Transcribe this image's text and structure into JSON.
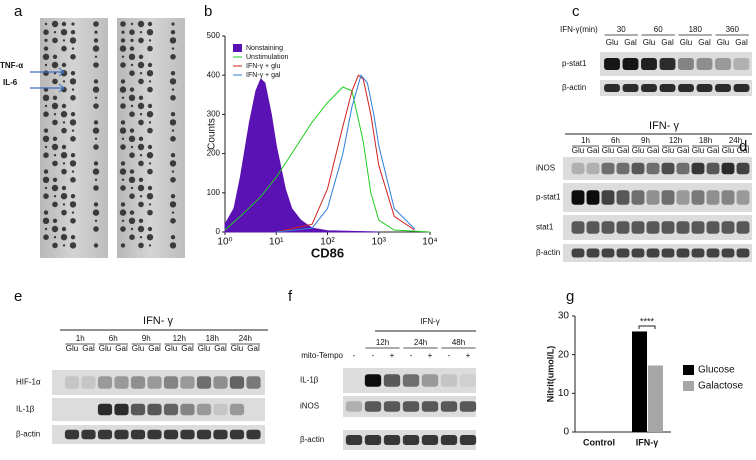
{
  "panel_labels": [
    "a",
    "b",
    "c",
    "d",
    "e",
    "f",
    "g"
  ],
  "array": {
    "markers": [
      "TNF-α",
      "IL-6"
    ]
  },
  "blot_c": {
    "header": "IFN-γ(min)",
    "groups": [
      "30",
      "60",
      "180",
      "360"
    ],
    "lanes": [
      "Glu",
      "Gal",
      "Glu",
      "Gal",
      "Glu",
      "Gal",
      "Glu",
      "Gal"
    ],
    "rows": [
      "p-stat1",
      "β-actin"
    ]
  },
  "blot_d": {
    "treatment": "IFN- γ",
    "groups": [
      "1h",
      "6h",
      "9h",
      "12h",
      "18h",
      "24h"
    ],
    "lanes": [
      "Glu",
      "Gal",
      "Glu",
      "Gal",
      "Glu",
      "Gal",
      "Glu",
      "Gal",
      "Glu",
      "Gal",
      "Glu",
      "Gal"
    ],
    "rows": [
      "iNOS",
      "p-stat1",
      "stat1",
      "β-actin"
    ]
  },
  "blot_e": {
    "treatment": "IFN- γ",
    "groups": [
      "1h",
      "6h",
      "9h",
      "12h",
      "18h",
      "24h"
    ],
    "lanes": [
      "Glu",
      "Gal",
      "Glu",
      "Gal",
      "Glu",
      "Gal",
      "Glu",
      "Gal",
      "Glu",
      "Gal",
      "Glu",
      "Gal"
    ],
    "rows": [
      "HIF-1α",
      "IL-1β",
      "β-actin"
    ]
  },
  "blot_f": {
    "treatment": "IFN-γ",
    "groups": [
      "12h",
      "24h",
      "48h"
    ],
    "condition": "mito-Tempo",
    "signs": [
      "-",
      "-",
      "+",
      "-",
      "+",
      "-",
      "+"
    ],
    "rows": [
      "IL-1β",
      "iNOS",
      "β-actin"
    ]
  },
  "chart_data": [
    {
      "type": "line",
      "xlabel": "CD86",
      "ylabel": "Counts",
      "xlog": true,
      "xlim": [
        1,
        10000
      ],
      "ylim": [
        0,
        500
      ],
      "xticks": [
        {
          "value": 1,
          "label": "10⁰"
        },
        {
          "value": 10,
          "label": "10¹"
        },
        {
          "value": 100,
          "label": "10²"
        },
        {
          "value": 1000,
          "label": "10³"
        },
        {
          "value": 10000,
          "label": "10⁴"
        }
      ],
      "yticks": [
        0,
        100,
        200,
        300,
        400,
        500
      ],
      "legend": "upper left",
      "series": [
        {
          "name": "Nonstaining",
          "color": "#5a12b4",
          "fill": true,
          "x": [
            1,
            1.5,
            2,
            3,
            4,
            5,
            6,
            8,
            10,
            15,
            20,
            30,
            50,
            100,
            1000
          ],
          "values": [
            20,
            60,
            140,
            280,
            360,
            390,
            380,
            300,
            220,
            110,
            60,
            30,
            10,
            3,
            0
          ]
        },
        {
          "name": "Unstimulation",
          "color": "#22cc22",
          "fill": false,
          "x": [
            1,
            2,
            5,
            10,
            20,
            50,
            100,
            200,
            300,
            500,
            700,
            1000,
            2000,
            10000
          ],
          "values": [
            5,
            40,
            90,
            140,
            200,
            280,
            330,
            370,
            360,
            230,
            100,
            30,
            5,
            0
          ]
        },
        {
          "name": "IFN-γ + glu",
          "color": "#d02020",
          "fill": false,
          "x": [
            10,
            50,
            100,
            200,
            300,
            400,
            500,
            700,
            1000,
            2000,
            5000
          ],
          "values": [
            0,
            20,
            110,
            270,
            360,
            400,
            390,
            300,
            170,
            40,
            5
          ]
        },
        {
          "name": "IFN-γ + gal",
          "color": "#2f7fd8",
          "fill": false,
          "x": [
            10,
            50,
            100,
            200,
            300,
            450,
            600,
            800,
            1000,
            2000,
            5000
          ],
          "values": [
            0,
            10,
            60,
            200,
            320,
            400,
            380,
            300,
            220,
            60,
            8
          ]
        }
      ]
    },
    {
      "type": "bar",
      "ylabel": "Nitrit(umol/L)",
      "categories": [
        "Control",
        "IFN-γ"
      ],
      "ylim": [
        0,
        30
      ],
      "yticks": [
        0,
        10,
        20,
        30
      ],
      "legend": "right",
      "annotation": "****",
      "series": [
        {
          "name": "Glucose",
          "color": "#000000",
          "values": [
            0,
            26
          ]
        },
        {
          "name": "Galactose",
          "color": "#a6a6a6",
          "values": [
            0,
            17.2
          ]
        }
      ]
    }
  ]
}
